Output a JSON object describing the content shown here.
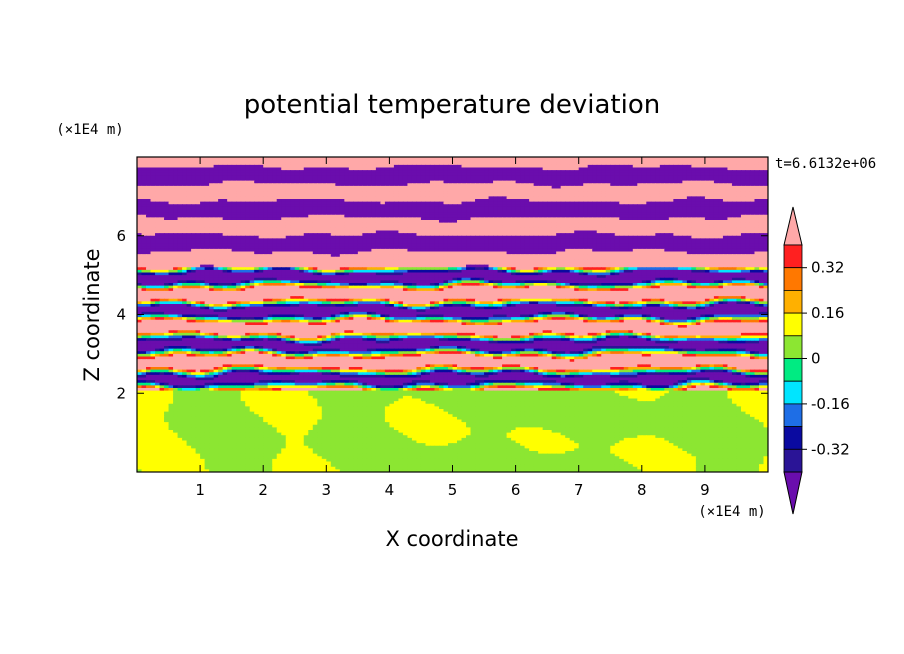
{
  "chart_data": {
    "type": "heatmap",
    "title": "potential temperature deviation",
    "xlabel": "X coordinate",
    "ylabel": "Z coordinate",
    "x_unit": "(×1E4 m)",
    "y_unit": "(×1E4 m)",
    "time_label": "t=6.6132e+06",
    "xlim": [
      0,
      10
    ],
    "ylim": [
      0,
      8
    ],
    "x_ticks": [
      1,
      2,
      3,
      4,
      5,
      6,
      7,
      8,
      9
    ],
    "y_ticks": [
      2,
      4,
      6
    ],
    "colorbar": {
      "levels": [
        -0.48,
        -0.4,
        -0.32,
        -0.24,
        -0.16,
        -0.08,
        0,
        0.08,
        0.16,
        0.24,
        0.32,
        0.4,
        0.48
      ],
      "labels": [
        "0.32",
        "0.16",
        "0",
        "-0.16",
        "-0.32"
      ],
      "label_values": [
        0.32,
        0.16,
        0,
        -0.16,
        -0.32
      ],
      "colors_low_to_high": [
        "#6a0dad",
        "#2a1496",
        "#0a0aa0",
        "#1e6ee6",
        "#00e5ff",
        "#00eb82",
        "#8ce632",
        "#ffff00",
        "#ffb000",
        "#ff7800",
        "#ff2020",
        "#ffa8a8"
      ],
      "extend": "both"
    },
    "grid": false
  }
}
